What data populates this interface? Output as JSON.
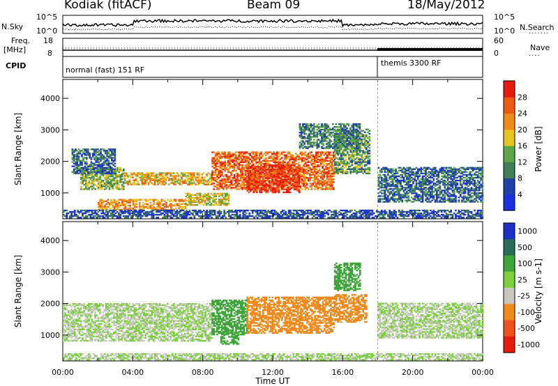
{
  "header": {
    "station": "Kodiak (fitACF)",
    "beam": "Beam 09",
    "date": "18/May/2012"
  },
  "status_panels": {
    "nsky_label": "N.Sky",
    "nsky_ticks": [
      "10^5",
      "10^0"
    ],
    "nsearch_label": "N.Search",
    "nsearch_ticks": [
      "10^5",
      "10^0"
    ],
    "freq_label_line1": "Freq.",
    "freq_label_line2": "[MHz]",
    "freq_ticks": [
      "18",
      "8"
    ],
    "nave_label": "Nave",
    "nave_ticks": [
      "60",
      "0"
    ],
    "cpid_label": "CPID",
    "cpid_segments": [
      {
        "name": "normal (fast) 151 RF",
        "start_hour": 0,
        "end_hour": 18
      },
      {
        "name": "themis 3300 RF",
        "start_hour": 18,
        "end_hour": 24
      }
    ]
  },
  "chart_data": [
    {
      "type": "heatmap",
      "panel": "power",
      "xlabel": "Time UT",
      "ylabel": "Slant Range [km]",
      "xlim": [
        0,
        24
      ],
      "ylim": [
        180,
        4600
      ],
      "x_ticks": [
        "00:00",
        "04:00",
        "08:00",
        "12:00",
        "16:00",
        "20:00",
        "00:00"
      ],
      "y_ticks": [
        "1000",
        "2000",
        "3000",
        "4000"
      ],
      "y_tick_values": [
        1000,
        2000,
        3000,
        4000
      ],
      "colorbar": {
        "label": "Power [dB]",
        "range": [
          0,
          32
        ],
        "tick_labels": [
          "4",
          "8",
          "12",
          "16",
          "20",
          "24",
          "28"
        ],
        "tick_values": [
          4,
          8,
          12,
          16,
          20,
          24,
          28
        ],
        "colors": [
          "#1c2fe0",
          "#2140a8",
          "#3f7f55",
          "#5aa84a",
          "#e8c21e",
          "#f08a1c",
          "#ee5a12",
          "#e81a10"
        ]
      },
      "regions": [
        {
          "t0": 1.0,
          "t1": 3.5,
          "r0": 1100,
          "r1": 1800,
          "value": 14
        },
        {
          "t0": 3.5,
          "t1": 8.5,
          "r0": 1250,
          "r1": 1650,
          "value": 20
        },
        {
          "t0": 8.5,
          "t1": 15.5,
          "r0": 1100,
          "r1": 2300,
          "value": 25
        },
        {
          "t0": 10.5,
          "t1": 13.5,
          "r0": 1000,
          "r1": 1900,
          "value": 29
        },
        {
          "t0": 2.0,
          "t1": 7.0,
          "r0": 450,
          "r1": 800,
          "value": 22
        },
        {
          "t0": 7.0,
          "t1": 9.5,
          "r0": 600,
          "r1": 1000,
          "value": 18
        },
        {
          "t0": 15.5,
          "t1": 17.5,
          "r0": 1600,
          "r1": 3000,
          "value": 12
        },
        {
          "t0": 18.0,
          "t1": 24.0,
          "r0": 700,
          "r1": 1800,
          "value": 8
        },
        {
          "t0": 0.0,
          "t1": 24.0,
          "r0": 200,
          "r1": 450,
          "value": 6
        },
        {
          "t0": 0.5,
          "t1": 3.0,
          "r0": 1600,
          "r1": 2400,
          "value": 8
        },
        {
          "t0": 13.5,
          "t1": 17.0,
          "r0": 2400,
          "r1": 3200,
          "value": 10
        }
      ]
    },
    {
      "type": "heatmap",
      "panel": "velocity",
      "xlabel": "Time UT",
      "ylabel": "Slant Range [km]",
      "xlim": [
        0,
        24
      ],
      "ylim": [
        180,
        4600
      ],
      "x_ticks": [
        "00:00",
        "04:00",
        "08:00",
        "12:00",
        "16:00",
        "20:00",
        "00:00"
      ],
      "y_ticks": [
        "1000",
        "2000",
        "3000",
        "4000"
      ],
      "y_tick_values": [
        1000,
        2000,
        3000,
        4000
      ],
      "colorbar": {
        "label": "Velocity [m s-1]",
        "tick_labels": [
          "1000",
          "500",
          "100",
          "25",
          "-25",
          "-100",
          "-500",
          "-1000"
        ],
        "tick_values": [
          1000,
          500,
          100,
          25,
          -25,
          -100,
          -500,
          -1000
        ],
        "colors": [
          "#1c30c8",
          "#2a6b58",
          "#3fa53a",
          "#7ad03c",
          "#c8c8c0",
          "#f08a1c",
          "#f0501c",
          "#e81a10"
        ]
      },
      "regions": [
        {
          "t0": 0.0,
          "t1": 8.5,
          "r0": 800,
          "r1": 2000,
          "value": 0
        },
        {
          "t0": 18.0,
          "t1": 24.0,
          "r0": 900,
          "r1": 2000,
          "value": 0
        },
        {
          "t0": 8.5,
          "t1": 10.5,
          "r0": 1000,
          "r1": 2100,
          "value": 150
        },
        {
          "t0": 10.5,
          "t1": 15.5,
          "r0": 1050,
          "r1": 2200,
          "value": -180
        },
        {
          "t0": 15.5,
          "t1": 17.3,
          "r0": 1400,
          "r1": 2300,
          "value": -120
        },
        {
          "t0": 9.0,
          "t1": 10.0,
          "r0": 700,
          "r1": 1100,
          "value": 150
        },
        {
          "t0": 15.5,
          "t1": 17.0,
          "r0": 2400,
          "r1": 3300,
          "value": 200
        },
        {
          "t0": 0.0,
          "t1": 24.0,
          "r0": 200,
          "r1": 400,
          "value": 0
        }
      ]
    }
  ]
}
